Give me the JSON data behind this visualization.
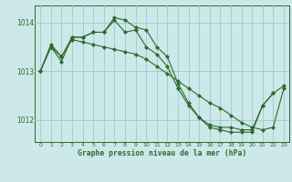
{
  "x": [
    0,
    1,
    2,
    3,
    4,
    5,
    6,
    7,
    8,
    9,
    10,
    11,
    12,
    13,
    14,
    15,
    16,
    17,
    18,
    19,
    20,
    21,
    22,
    23
  ],
  "series1": [
    1013.0,
    1013.5,
    1013.3,
    1013.7,
    1013.7,
    1013.8,
    1013.8,
    1014.05,
    1013.8,
    1013.85,
    1013.5,
    1013.35,
    1013.1,
    1012.65,
    1012.3,
    1012.05,
    1011.9,
    1011.85,
    1011.85,
    1011.8,
    1011.8,
    1012.3,
    1012.55,
    null
  ],
  "series2": [
    1013.0,
    1013.55,
    1013.3,
    1013.65,
    1013.6,
    1013.55,
    1013.5,
    1013.45,
    1013.4,
    1013.35,
    1013.25,
    1013.1,
    1012.95,
    1012.8,
    1012.65,
    1012.5,
    1012.35,
    1012.25,
    1012.1,
    1011.95,
    1011.85,
    1011.8,
    1011.85,
    1012.65
  ],
  "series3": [
    1013.0,
    1013.5,
    1013.2,
    1013.7,
    1013.7,
    1013.8,
    1013.8,
    1014.1,
    1014.05,
    1013.9,
    1013.85,
    1013.5,
    1013.3,
    1012.75,
    1012.35,
    1012.05,
    1011.85,
    1011.8,
    1011.75,
    1011.75,
    1011.75,
    1012.3,
    1012.55,
    1012.7
  ],
  "background_color": "#cce8e8",
  "line_color": "#2d6a2d",
  "grid_color": "#99cccc",
  "xlabel": "Graphe pression niveau de la mer (hPa)",
  "yticks": [
    1012,
    1013,
    1014
  ],
  "xticks": [
    0,
    1,
    2,
    3,
    4,
    5,
    6,
    7,
    8,
    9,
    10,
    11,
    12,
    13,
    14,
    15,
    16,
    17,
    18,
    19,
    20,
    21,
    22,
    23
  ],
  "ylim": [
    1011.55,
    1014.35
  ],
  "xlim": [
    -0.5,
    23.5
  ]
}
